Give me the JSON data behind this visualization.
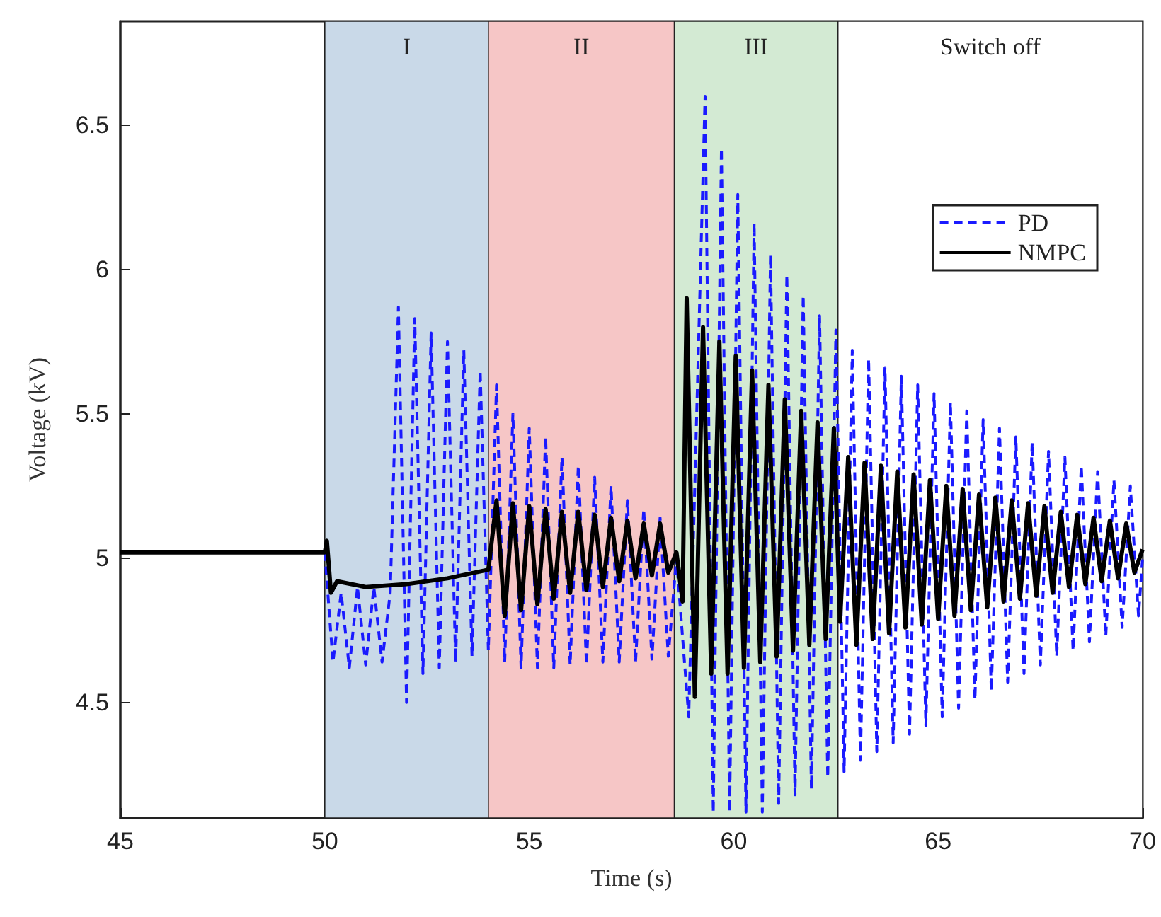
{
  "chart_data": {
    "type": "line",
    "xlabel": "Time (s)",
    "ylabel": "Voltage (kV)",
    "xlim": [
      45,
      70
    ],
    "xticks": [
      45,
      50,
      55,
      60,
      65,
      70
    ],
    "ylim": [
      4.1,
      6.86
    ],
    "yticks": [
      4.5,
      5,
      5.5,
      6,
      6.5
    ],
    "grid": false,
    "legend": "top right",
    "marker": "none",
    "bands": [
      {
        "axis": "x",
        "from": 50,
        "to": 54,
        "label": "I",
        "color": "#c9d9e8"
      },
      {
        "axis": "x",
        "from": 54,
        "to": 58.55,
        "label": "II",
        "color": "#f6c6c6"
      },
      {
        "axis": "x",
        "from": 58.55,
        "to": 62.55,
        "label": "III",
        "color": "#d3ead3"
      },
      {
        "axis": "x",
        "from": 62.55,
        "to": 70,
        "label": "Switch off",
        "color": "#ffffff"
      }
    ],
    "series": [
      {
        "name": "PD",
        "color": "#1a1aff",
        "line_style": "dashed",
        "x": [
          50.0,
          50.2,
          50.4,
          50.6,
          50.8,
          51.0,
          51.2,
          51.4,
          51.6,
          51.8,
          52.0,
          52.2,
          52.4,
          52.6,
          52.8,
          53.0,
          53.2,
          53.4,
          53.6,
          53.8,
          54.0,
          54.2,
          54.4,
          54.6,
          54.8,
          55.0,
          55.2,
          55.4,
          55.6,
          55.8,
          56.0,
          56.2,
          56.4,
          56.6,
          56.8,
          57.0,
          57.2,
          57.4,
          57.6,
          57.8,
          58.0,
          58.2,
          58.4,
          58.6,
          58.9,
          59.3,
          59.5,
          59.7,
          59.9,
          60.1,
          60.3,
          60.5,
          60.7,
          60.9,
          61.1,
          61.3,
          61.5,
          61.7,
          61.9,
          62.1,
          62.3,
          62.5,
          62.7,
          62.9,
          63.1,
          63.3,
          63.5,
          63.7,
          63.9,
          64.1,
          64.3,
          64.5,
          64.7,
          64.9,
          65.1,
          65.3,
          65.5,
          65.7,
          65.9,
          66.1,
          66.3,
          66.5,
          66.7,
          66.9,
          67.1,
          67.3,
          67.5,
          67.7,
          67.9,
          68.1,
          68.3,
          68.5,
          68.7,
          68.9,
          69.1,
          69.3,
          69.5,
          69.7,
          69.9,
          70.0
        ],
        "values": [
          5.02,
          4.64,
          4.88,
          4.62,
          4.9,
          4.63,
          4.9,
          4.64,
          4.88,
          5.87,
          4.5,
          5.83,
          4.6,
          5.78,
          4.62,
          5.75,
          4.64,
          5.72,
          4.66,
          5.65,
          4.68,
          5.6,
          4.64,
          5.5,
          4.62,
          5.45,
          4.62,
          5.42,
          4.62,
          5.35,
          4.63,
          5.32,
          4.63,
          5.28,
          4.64,
          5.25,
          4.64,
          5.2,
          4.64,
          5.17,
          4.65,
          5.14,
          4.66,
          5.0,
          4.45,
          6.6,
          4.12,
          6.42,
          4.12,
          6.26,
          4.12,
          6.16,
          4.12,
          6.05,
          4.15,
          5.98,
          4.18,
          5.91,
          4.2,
          5.84,
          4.24,
          5.79,
          4.26,
          5.72,
          4.3,
          5.69,
          4.33,
          5.66,
          4.36,
          5.63,
          4.39,
          5.6,
          4.42,
          5.57,
          4.45,
          5.54,
          4.48,
          5.51,
          4.51,
          5.48,
          4.54,
          5.45,
          4.57,
          5.42,
          4.6,
          5.4,
          4.63,
          5.37,
          4.66,
          5.35,
          4.68,
          5.32,
          4.71,
          5.3,
          4.73,
          5.27,
          4.76,
          5.25,
          4.8,
          5.0
        ]
      },
      {
        "name": "NMPC",
        "color": "#000000",
        "line_style": "solid",
        "x": [
          45,
          50.0,
          50.05,
          50.15,
          50.3,
          51,
          52,
          53,
          54.0,
          54.2,
          54.4,
          54.6,
          54.8,
          55.0,
          55.2,
          55.4,
          55.6,
          55.8,
          56.0,
          56.2,
          56.4,
          56.6,
          56.8,
          57.0,
          57.2,
          57.4,
          57.6,
          57.8,
          58.0,
          58.2,
          58.4,
          58.6,
          58.75,
          58.85,
          59.05,
          59.25,
          59.45,
          59.65,
          59.85,
          60.05,
          60.25,
          60.45,
          60.65,
          60.85,
          61.05,
          61.25,
          61.45,
          61.65,
          61.85,
          62.05,
          62.25,
          62.45,
          62.6,
          62.8,
          63.0,
          63.2,
          63.4,
          63.6,
          63.8,
          64.0,
          64.2,
          64.4,
          64.6,
          64.8,
          65.0,
          65.2,
          65.4,
          65.6,
          65.8,
          66.0,
          66.2,
          66.4,
          66.6,
          66.8,
          67.0,
          67.2,
          67.4,
          67.6,
          67.8,
          68.0,
          68.2,
          68.4,
          68.6,
          68.8,
          69.0,
          69.2,
          69.4,
          69.6,
          69.8,
          70.0
        ],
        "values": [
          5.02,
          5.02,
          5.06,
          4.88,
          4.92,
          4.9,
          4.91,
          4.93,
          4.96,
          5.2,
          4.8,
          5.19,
          4.82,
          5.18,
          4.84,
          5.17,
          4.86,
          5.16,
          4.88,
          5.16,
          4.89,
          5.15,
          4.9,
          5.14,
          4.92,
          5.13,
          4.93,
          5.12,
          4.94,
          5.12,
          4.95,
          5.02,
          4.85,
          5.9,
          4.52,
          5.8,
          4.6,
          5.75,
          4.6,
          5.7,
          4.62,
          5.65,
          4.64,
          5.6,
          4.66,
          5.55,
          4.68,
          5.51,
          4.7,
          5.47,
          4.72,
          5.45,
          4.78,
          5.35,
          4.7,
          5.33,
          4.72,
          5.32,
          4.74,
          5.3,
          4.76,
          5.29,
          4.77,
          5.27,
          4.79,
          5.25,
          4.8,
          5.24,
          4.82,
          5.22,
          4.83,
          5.21,
          4.85,
          5.2,
          4.86,
          5.19,
          4.87,
          5.18,
          4.88,
          5.16,
          4.9,
          5.15,
          4.91,
          5.14,
          4.92,
          5.13,
          4.93,
          5.12,
          4.95,
          5.03
        ]
      }
    ]
  }
}
